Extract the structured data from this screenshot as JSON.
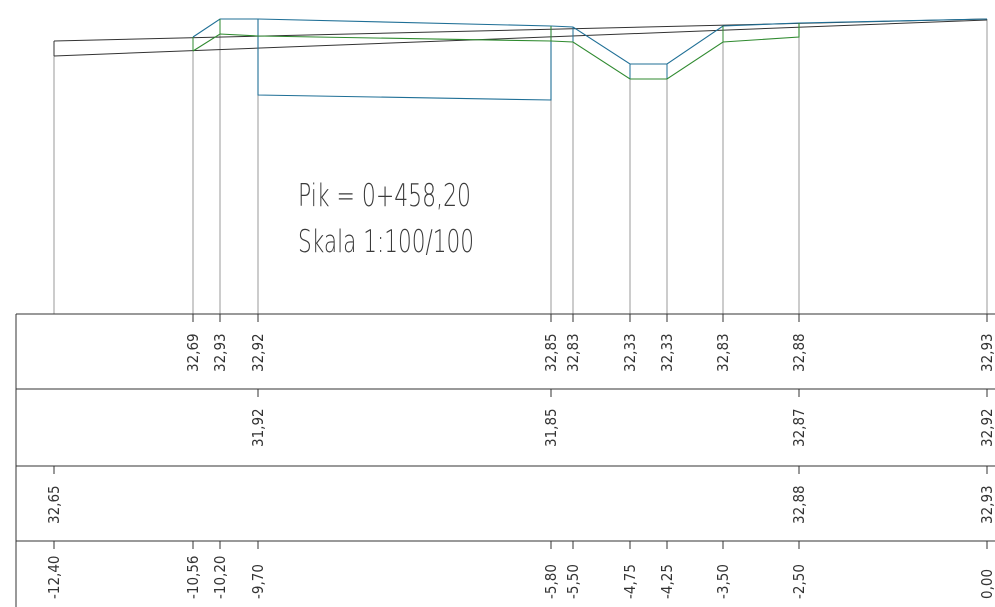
{
  "title": {
    "line1": "Pik  =  0+458,20",
    "line2": "Skala 1:100/100"
  },
  "colors": {
    "ground_line": "#333333",
    "projection_line": "#9a9a9a",
    "design_profile": "#1f6f96",
    "subgrade_profile": "#2f8a2f",
    "table_line": "#333333"
  },
  "stations": [
    -12.4,
    -10.56,
    -10.2,
    -9.7,
    -5.8,
    -5.5,
    -4.75,
    -4.25,
    -3.5,
    -2.5,
    0.0
  ],
  "table": {
    "row1": [
      {
        "station": -10.56,
        "label": "32,69"
      },
      {
        "station": -10.2,
        "label": "32,93"
      },
      {
        "station": -9.7,
        "label": "32,92"
      },
      {
        "station": -5.8,
        "label": "32,85"
      },
      {
        "station": -5.5,
        "label": "32,83"
      },
      {
        "station": -4.75,
        "label": "32,33"
      },
      {
        "station": -4.25,
        "label": "32,33"
      },
      {
        "station": -3.5,
        "label": "32,83"
      },
      {
        "station": -2.5,
        "label": "32,88"
      },
      {
        "station": 0.0,
        "label": "32,93"
      }
    ],
    "row2": [
      {
        "station": -9.7,
        "label": "31,92"
      },
      {
        "station": -5.8,
        "label": "31,85"
      },
      {
        "station": -2.5,
        "label": "32,87"
      },
      {
        "station": 0.0,
        "label": "32,92"
      }
    ],
    "row3": [
      {
        "station": -12.4,
        "label": "32,65"
      },
      {
        "station": -2.5,
        "label": "32,88"
      },
      {
        "station": 0.0,
        "label": "32,93"
      }
    ],
    "row4": [
      {
        "station": -12.4,
        "label": "-12,40"
      },
      {
        "station": -10.56,
        "label": "-10,56"
      },
      {
        "station": -10.2,
        "label": "-10,20"
      },
      {
        "station": -9.7,
        "label": "-9,70"
      },
      {
        "station": -5.8,
        "label": "-5,80"
      },
      {
        "station": -5.5,
        "label": "-5,50"
      },
      {
        "station": -4.75,
        "label": "-4,75"
      },
      {
        "station": -4.25,
        "label": "-4,25"
      },
      {
        "station": -3.5,
        "label": "-3,50"
      },
      {
        "station": -2.5,
        "label": "-2,50"
      },
      {
        "station": 0.0,
        "label": "0,00"
      }
    ]
  },
  "profiles": {
    "ground_upper": [
      {
        "station": -12.4,
        "elev": 32.65
      },
      {
        "station": 0.0,
        "elev": 32.93
      }
    ],
    "ground_lower": [
      {
        "station": -12.4,
        "elev": 32.58
      },
      {
        "station": 0.0,
        "elev": 32.92
      }
    ],
    "design_surface": [
      {
        "station": -10.56,
        "elev": 32.69
      },
      {
        "station": -10.2,
        "elev": 32.93
      },
      {
        "station": -9.7,
        "elev": 32.92
      },
      {
        "station": -5.8,
        "elev": 32.85
      },
      {
        "station": -5.5,
        "elev": 32.83
      },
      {
        "station": -4.75,
        "elev": 32.33
      },
      {
        "station": -4.25,
        "elev": 32.33
      },
      {
        "station": -3.5,
        "elev": 32.83
      },
      {
        "station": -2.5,
        "elev": 32.88
      },
      {
        "station": 0.0,
        "elev": 32.93
      }
    ],
    "design_box": [
      {
        "station": -9.7,
        "elev": 32.92
      },
      {
        "station": -9.7,
        "elev": 31.92
      },
      {
        "station": -5.8,
        "elev": 31.85
      },
      {
        "station": -5.8,
        "elev": 32.85
      }
    ],
    "subgrade": [
      {
        "station": -10.56,
        "elev": 32.69
      },
      {
        "station": -10.2,
        "elev": 32.78
      },
      {
        "station": -9.7,
        "elev": 32.77
      },
      {
        "station": -5.8,
        "elev": 32.7
      },
      {
        "station": -5.5,
        "elev": 32.68
      },
      {
        "station": -4.75,
        "elev": 32.18
      },
      {
        "station": -4.25,
        "elev": 32.18
      },
      {
        "station": -3.5,
        "elev": 32.68
      },
      {
        "station": -2.5,
        "elev": 32.73
      },
      {
        "station": -2.5,
        "elev": 32.88
      }
    ]
  }
}
